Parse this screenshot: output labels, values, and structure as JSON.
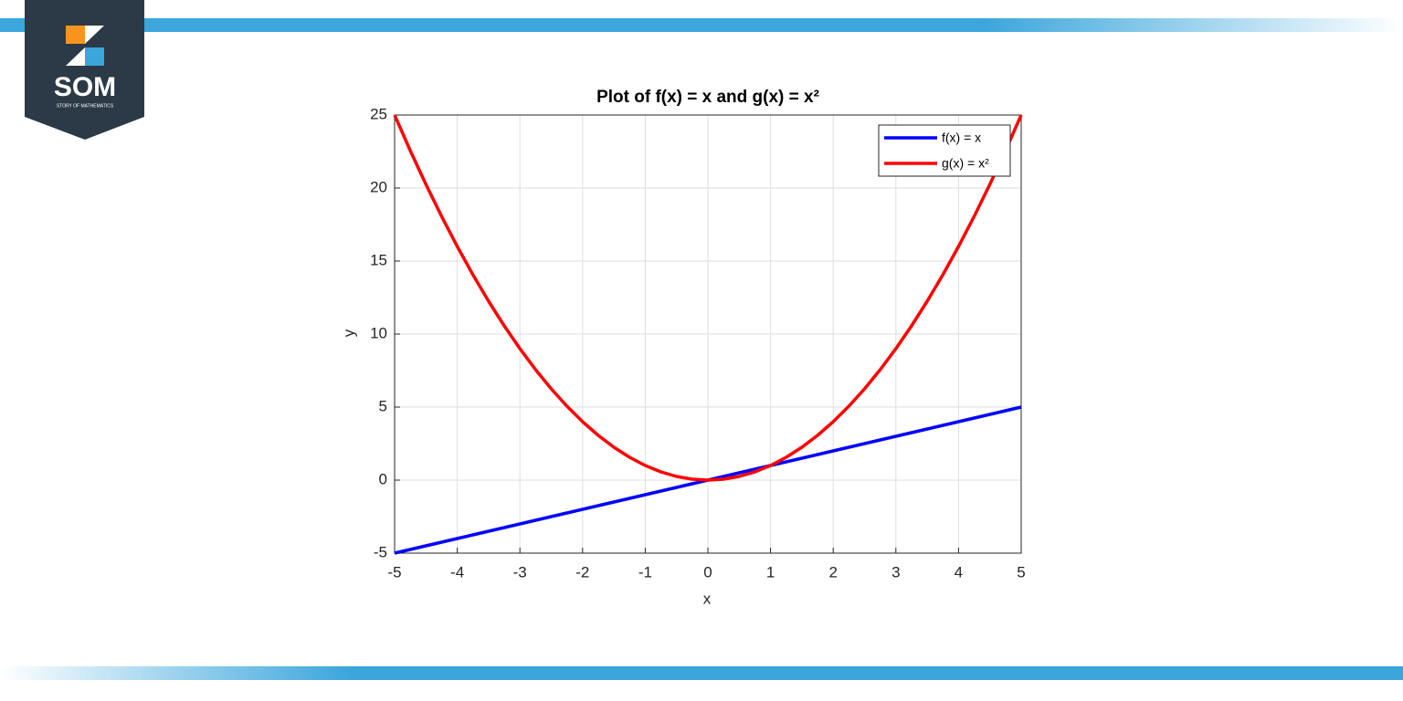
{
  "logo": {
    "text": "SOM",
    "subtitle": "STORY OF MATHEMATICS"
  },
  "chart_data": {
    "type": "line",
    "title": "Plot of f(x) = x and g(x) = x²",
    "x_label": "x",
    "y_label": "y",
    "x": [
      -5,
      -4.75,
      -4.5,
      -4.25,
      -4,
      -3.75,
      -3.5,
      -3.25,
      -3,
      -2.75,
      -2.5,
      -2.25,
      -2,
      -1.75,
      -1.5,
      -1.25,
      -1,
      -0.75,
      -0.5,
      -0.25,
      0,
      0.25,
      0.5,
      0.75,
      1,
      1.25,
      1.5,
      1.75,
      2,
      2.25,
      2.5,
      2.75,
      3,
      3.25,
      3.5,
      3.75,
      4,
      4.25,
      4.5,
      4.75,
      5
    ],
    "series": [
      {
        "name": "f(x) = x",
        "color": "#0000ff",
        "values": [
          -5,
          -4.75,
          -4.5,
          -4.25,
          -4,
          -3.75,
          -3.5,
          -3.25,
          -3,
          -2.75,
          -2.5,
          -2.25,
          -2,
          -1.75,
          -1.5,
          -1.25,
          -1,
          -0.75,
          -0.5,
          -0.25,
          0,
          0.25,
          0.5,
          0.75,
          1,
          1.25,
          1.5,
          1.75,
          2,
          2.25,
          2.5,
          2.75,
          3,
          3.25,
          3.5,
          3.75,
          4,
          4.25,
          4.5,
          4.75,
          5
        ]
      },
      {
        "name": "g(x) = x²",
        "color": "#ff0000",
        "values": [
          25,
          22.5625,
          20.25,
          18.0625,
          16,
          14.0625,
          12.25,
          10.5625,
          9,
          7.5625,
          6.25,
          5.0625,
          4,
          3.0625,
          2.25,
          1.5625,
          1,
          0.5625,
          0.25,
          0.0625,
          0,
          0.0625,
          0.25,
          0.5625,
          1,
          1.5625,
          2.25,
          3.0625,
          4,
          5.0625,
          6.25,
          7.5625,
          9,
          10.5625,
          12.25,
          14.0625,
          16,
          18.0625,
          20.25,
          22.5625,
          25
        ]
      }
    ],
    "xlim": [
      -5,
      5
    ],
    "xticks": [
      -5,
      -4,
      -3,
      -2,
      -1,
      0,
      1,
      2,
      3,
      4,
      5
    ],
    "ylim": [
      -5,
      25
    ],
    "yticks": [
      -5,
      0,
      5,
      10,
      15,
      20,
      25
    ],
    "grid": true,
    "legend": "northeast"
  }
}
